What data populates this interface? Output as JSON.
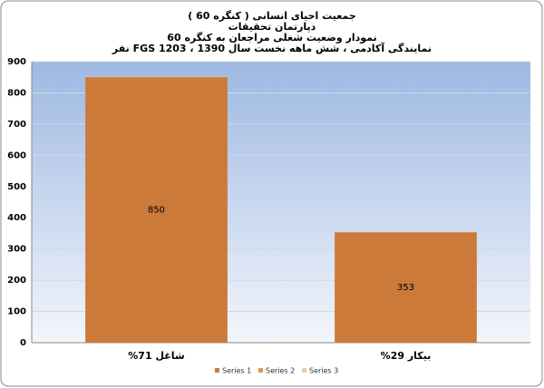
{
  "chart_data": {
    "type": "bar",
    "stacked": true,
    "title": [
      "جمعیت احیای انسانی ( کنگره 60 )",
      "دپارتمان تحقیقات",
      "نمودار وضعیت شغلی مراجعان به کنگره 60",
      "نمایندگی آکادمی ، شش ماهه نخست سال 1390 ، 1203 FGS نفر"
    ],
    "categories": [
      "شاغل 71%",
      "بیکار 29%"
    ],
    "series": [
      {
        "name": "Series 1",
        "color": "#cc7a3a",
        "values": [
          850,
          353
        ]
      },
      {
        "name": "Series 2",
        "color": "#e59550",
        "values": [
          1,
          1
        ]
      },
      {
        "name": "Series 3",
        "color": "#f2c9a2",
        "values": [
          1,
          1
        ]
      }
    ],
    "value_labels_series": 0,
    "ylim": [
      0,
      900
    ],
    "yticks": [
      0,
      100,
      200,
      300,
      400,
      500,
      600,
      700,
      800,
      900
    ],
    "grid": true,
    "legend": "bottom"
  }
}
